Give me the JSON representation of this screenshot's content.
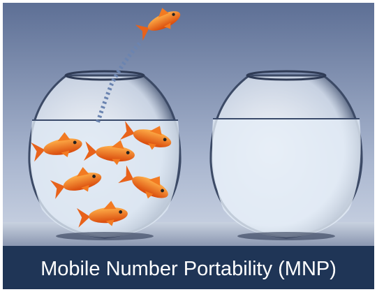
{
  "caption": "Mobile Number Portability (MNP)"
}
